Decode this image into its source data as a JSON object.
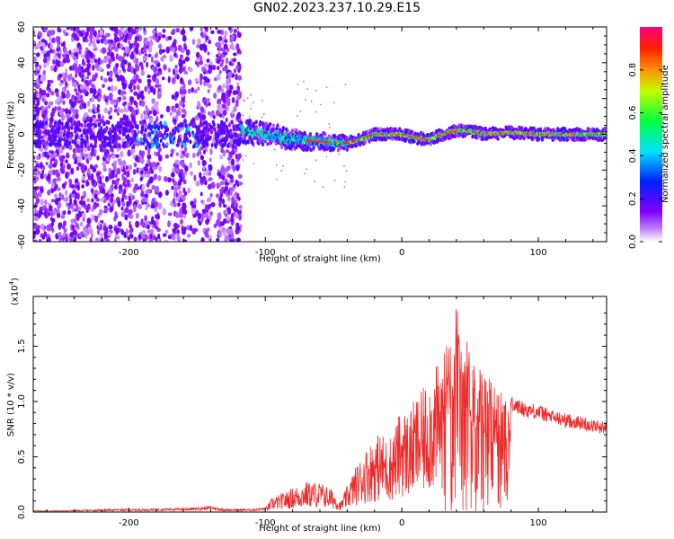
{
  "title": "GN02.2023.237.10.29.E15",
  "chart_data": [
    {
      "type": "heatmap",
      "xlabel": "Height of straight line (km)",
      "ylabel": "Frequency (Hz)",
      "xlim": [
        -270,
        150
      ],
      "ylim": [
        -60,
        60
      ],
      "xticks": [
        -200,
        -100,
        0,
        100
      ],
      "yticks": [
        -60,
        -40,
        -20,
        0,
        20,
        40,
        60
      ],
      "colorbar": {
        "label": "Normalized spectral amplitude",
        "range": [
          0,
          1
        ],
        "ticks": [
          "0.0",
          "0.2",
          "0.4",
          "0.6",
          "0.8"
        ],
        "colormap": [
          "#ffffff",
          "#8000ff",
          "#0000ff",
          "#00ffff",
          "#00ff00",
          "#ffff00",
          "#ff8000",
          "#ff0000",
          "#ff0080"
        ]
      },
      "regions": [
        {
          "from": -270,
          "to": -118,
          "description_level": "broadband noise",
          "amplitude_max": 0.2
        },
        {
          "from": -118,
          "to": 150,
          "description_level": "narrowband line near 0 Hz",
          "amplitude_max": 1.0
        }
      ],
      "center_frequency_track": {
        "x": [
          -118,
          -100,
          -80,
          -60,
          -40,
          -30,
          -20,
          -10,
          0,
          10,
          20,
          30,
          40,
          50,
          60,
          80,
          100,
          120,
          150
        ],
        "y": [
          2,
          0,
          -3,
          -4,
          -5,
          -3,
          0,
          0,
          0,
          -2,
          -3,
          0,
          2,
          2,
          0,
          1,
          0,
          0,
          0
        ]
      }
    },
    {
      "type": "line",
      "xlabel": "Height of straight line (km)",
      "ylabel": "SNR (10 * v/v)",
      "yscale_label": "(x10",
      "yscale_exp": "4",
      "yscale_close": ")",
      "xlim": [
        -270,
        150
      ],
      "ylim": [
        0,
        1.95
      ],
      "xticks": [
        -200,
        -100,
        0,
        100
      ],
      "yticks": [
        0.0,
        0.5,
        1.0,
        1.5
      ],
      "ytick_labels": [
        "0.0",
        "0.5",
        "1.0",
        "1.5"
      ],
      "color": "#ee2b2b",
      "series": [
        {
          "x": [
            -270,
            -250,
            -230,
            -210,
            -190,
            -170,
            -150,
            -140,
            -130,
            -120,
            -110,
            -100,
            -95,
            -90,
            -80,
            -70,
            -60,
            -50,
            -45,
            -40,
            -35,
            -30,
            -25,
            -20,
            -15,
            -10,
            -5,
            0,
            5,
            10,
            15,
            20,
            25,
            30,
            35,
            40,
            45,
            50,
            55,
            60,
            65,
            70,
            80,
            90,
            100,
            110,
            120,
            130,
            140,
            150
          ],
          "y": [
            0.01,
            0.01,
            0.015,
            0.02,
            0.02,
            0.025,
            0.03,
            0.04,
            0.02,
            0.02,
            0.02,
            0.03,
            0.12,
            0.14,
            0.2,
            0.25,
            0.25,
            0.18,
            0.08,
            0.22,
            0.35,
            0.45,
            0.55,
            0.62,
            0.66,
            0.6,
            0.72,
            0.88,
            0.82,
            0.95,
            1.0,
            1.15,
            1.2,
            1.3,
            1.6,
            1.8,
            1.6,
            1.4,
            1.3,
            1.2,
            1.15,
            1.05,
            1.0,
            0.95,
            0.93,
            0.88,
            0.85,
            0.83,
            0.8,
            0.78
          ]
        }
      ]
    }
  ]
}
